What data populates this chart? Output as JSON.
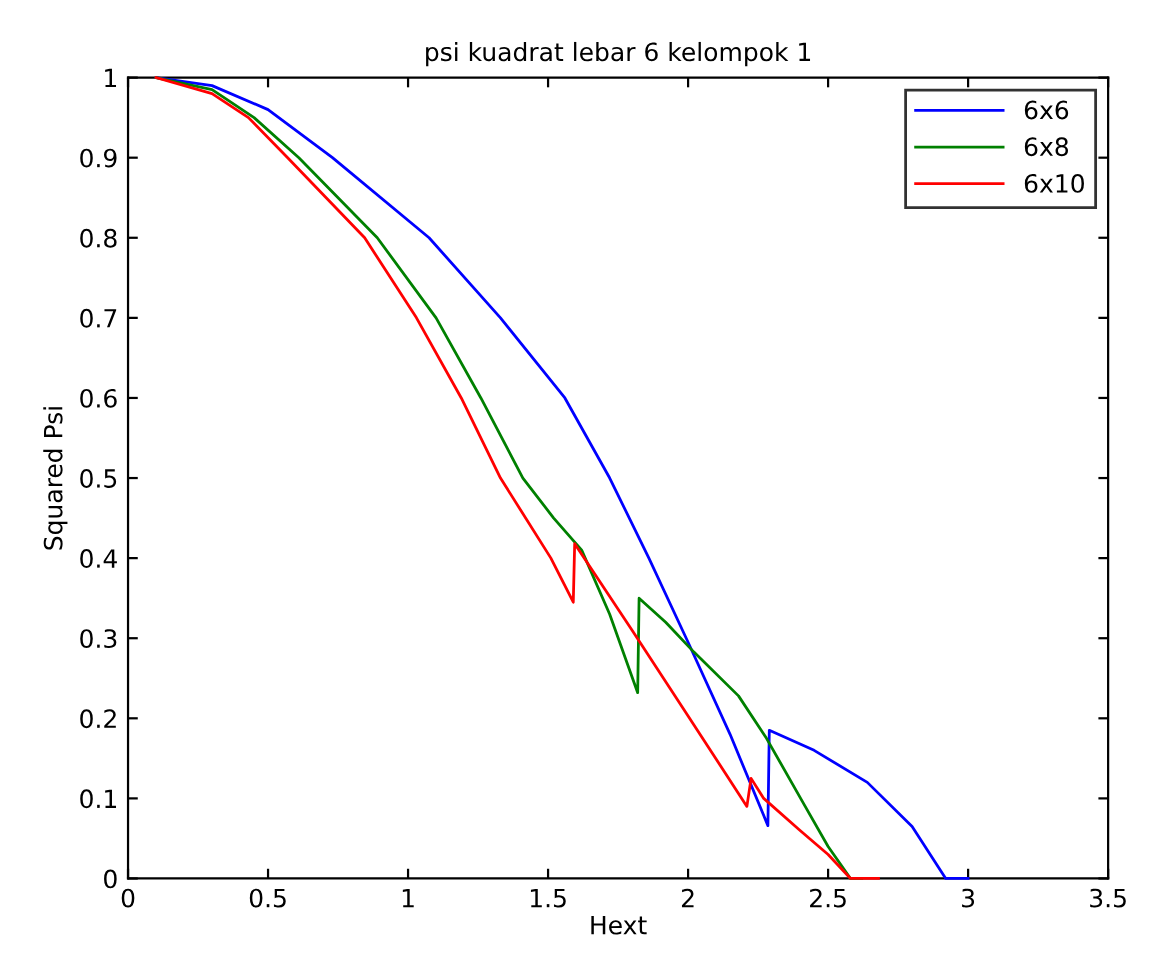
{
  "chart_data": {
    "type": "line",
    "title": "psi kuadrat lebar 6 kelompok 1",
    "xlabel": "Hext",
    "ylabel": "Squared Psi",
    "xlim": [
      0,
      3.5
    ],
    "xticks": [
      0,
      0.5,
      1,
      1.5,
      2,
      2.5,
      3,
      3.5
    ],
    "ylim": [
      0,
      1
    ],
    "yticks": [
      0,
      0.1,
      0.2,
      0.3,
      0.4,
      0.5,
      0.6,
      0.7,
      0.8,
      0.9,
      1
    ],
    "grid": false,
    "legend": "top right",
    "marker": "none",
    "line_style": "solid",
    "series": [
      {
        "name": "6x6",
        "color": "#0000ff",
        "x": [
          0.1,
          0.3,
          0.5,
          0.73,
          1.075,
          1.33,
          1.56,
          1.72,
          1.86,
          2.0,
          2.15,
          2.285,
          2.29,
          2.45,
          2.64,
          2.8,
          2.92,
          3.0
        ],
        "values": [
          1,
          0.99,
          0.96,
          0.9,
          0.8,
          0.7,
          0.6,
          0.5,
          0.4,
          0.295,
          0.18,
          0.066,
          0.185,
          0.16,
          0.12,
          0.065,
          0.0,
          0.0
        ]
      },
      {
        "name": "6x8",
        "color": "#008000",
        "x": [
          0.1,
          0.3,
          0.45,
          0.61,
          0.89,
          1.1,
          1.26,
          1.41,
          1.52,
          1.62,
          1.72,
          1.82,
          1.825,
          1.92,
          2.02,
          2.18,
          2.28,
          2.41,
          2.5,
          2.58,
          2.62
        ],
        "values": [
          1,
          0.985,
          0.95,
          0.9,
          0.8,
          0.7,
          0.6,
          0.5,
          0.45,
          0.41,
          0.33,
          0.232,
          0.35,
          0.32,
          0.283,
          0.228,
          0.175,
          0.095,
          0.04,
          0.0,
          0.0
        ]
      },
      {
        "name": "6x10",
        "color": "#ff0000",
        "x": [
          0.1,
          0.3,
          0.43,
          0.57,
          0.845,
          1.03,
          1.19,
          1.33,
          1.51,
          1.59,
          1.595,
          1.8,
          2.0,
          2.21,
          2.225,
          2.27,
          2.4,
          2.5,
          2.58,
          2.68
        ],
        "values": [
          1,
          0.98,
          0.95,
          0.9,
          0.8,
          0.7,
          0.6,
          0.5,
          0.4,
          0.345,
          0.418,
          0.31,
          0.203,
          0.09,
          0.125,
          0.1,
          0.06,
          0.03,
          0.0,
          0.0
        ]
      }
    ]
  }
}
